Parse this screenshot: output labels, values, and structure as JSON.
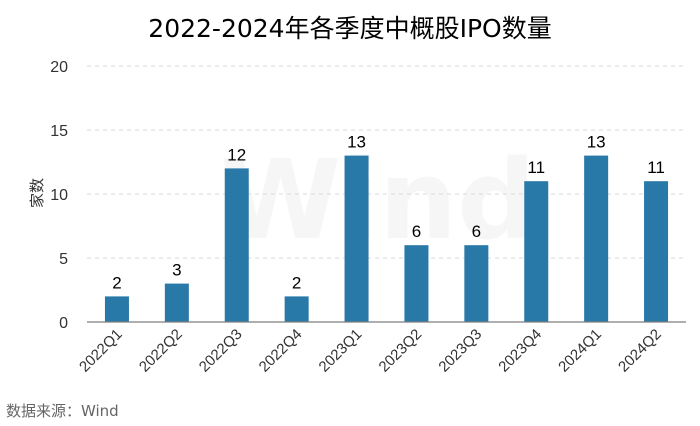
{
  "chart_data": {
    "type": "bar",
    "title": "2022-2024年各季度中概股IPO数量",
    "xlabel": "",
    "ylabel": "家数",
    "ylim": [
      0,
      20
    ],
    "yticks": [
      0,
      5,
      10,
      15,
      20
    ],
    "grid": true,
    "categories": [
      "2022Q1",
      "2022Q2",
      "2022Q3",
      "2022Q4",
      "2023Q1",
      "2023Q2",
      "2023Q3",
      "2023Q4",
      "2024Q1",
      "2024Q2"
    ],
    "values": [
      2,
      3,
      12,
      2,
      13,
      6,
      6,
      11,
      13,
      11
    ],
    "bar_color": "#2878a8"
  },
  "watermark": "Wind",
  "source": "数据来源：Wind"
}
